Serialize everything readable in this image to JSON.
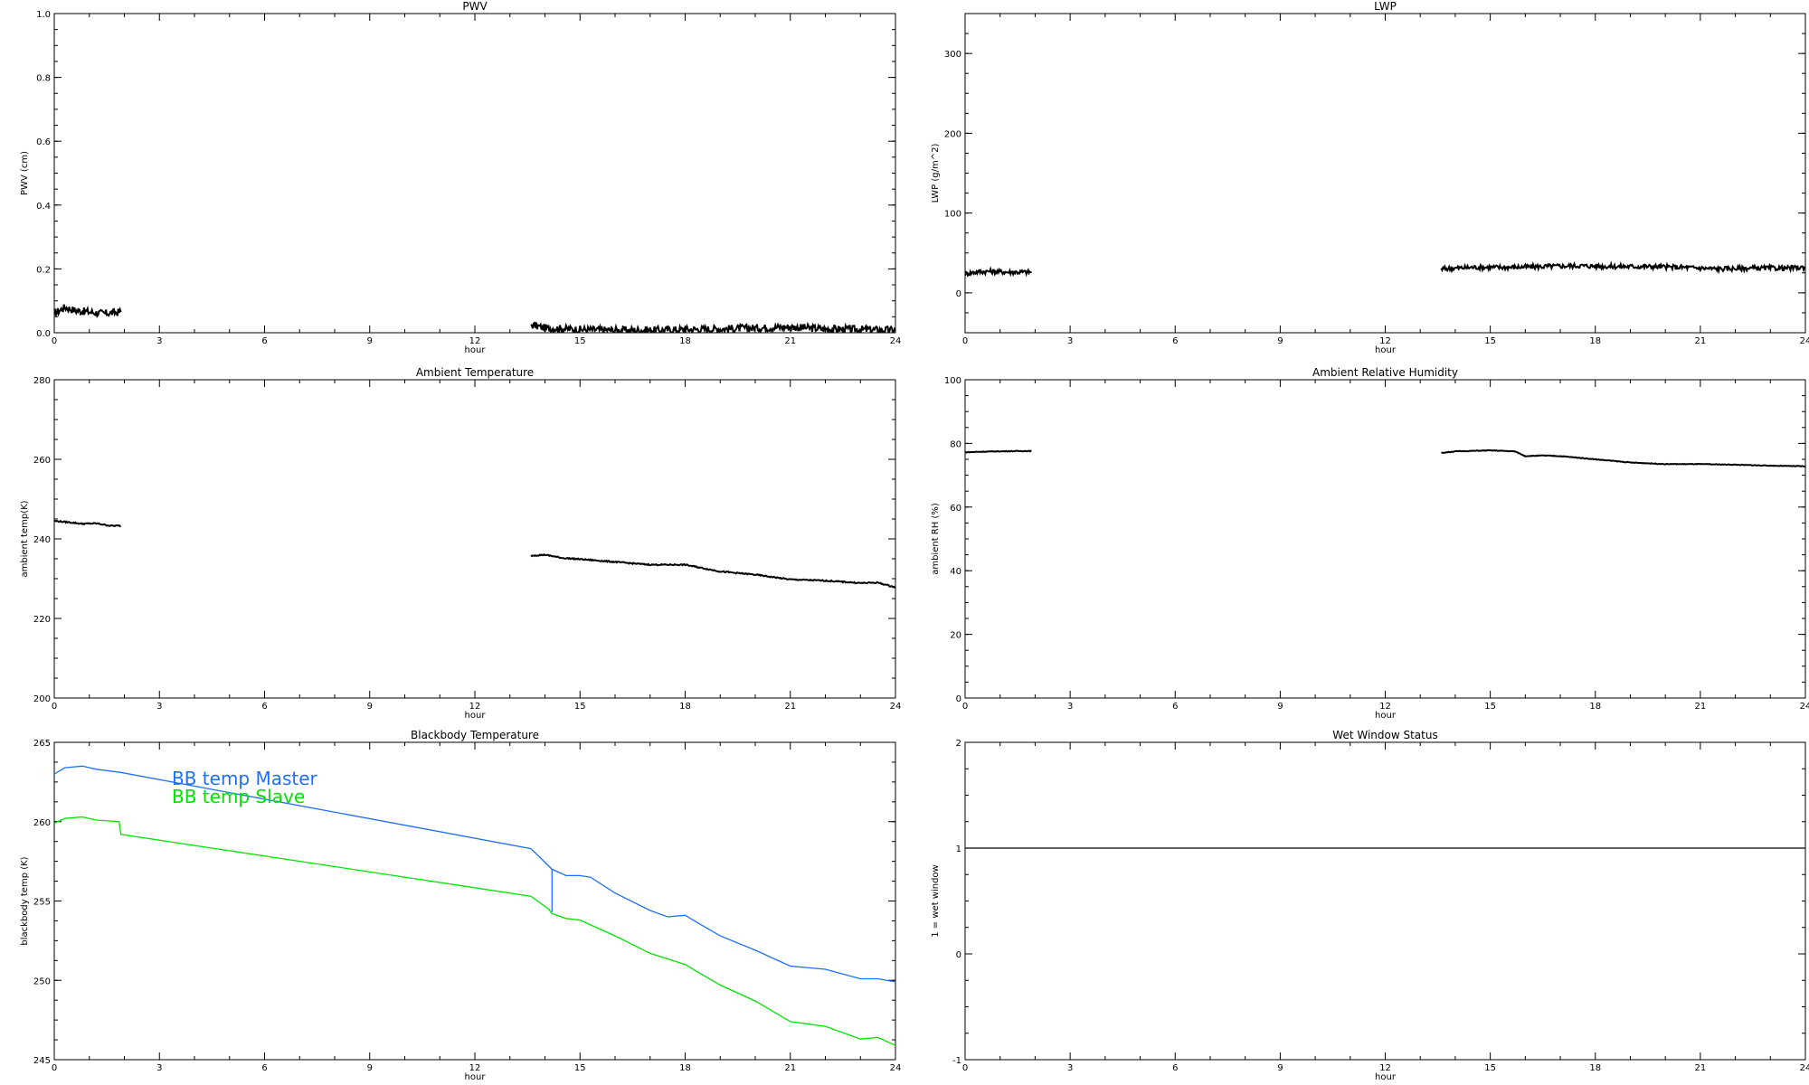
{
  "chart_data": [
    {
      "type": "line",
      "title": "PWV",
      "xlabel": "hour",
      "ylabel": "PWV (cm)",
      "xlim": [
        0,
        24
      ],
      "ylim": [
        0.0,
        1.0
      ],
      "xticks": [
        "0",
        "3",
        "6",
        "9",
        "12",
        "15",
        "18",
        "21",
        "24"
      ],
      "yticks": [
        "0.0",
        "0.2",
        "0.4",
        "0.6",
        "0.8",
        "1.0"
      ],
      "noise": 0.012,
      "series": [
        {
          "color": "#000000",
          "x": [
            0,
            0.3,
            0.6,
            1.0,
            1.4,
            1.9
          ],
          "y": [
            0.06,
            0.08,
            0.07,
            0.065,
            0.06,
            0.065
          ]
        },
        {
          "color": "#000000",
          "x": [
            13.6,
            14,
            15,
            16,
            17,
            18,
            19,
            20,
            21,
            22,
            23,
            24
          ],
          "y": [
            0.025,
            0.015,
            0.01,
            0.008,
            0.008,
            0.01,
            0.012,
            0.015,
            0.018,
            0.012,
            0.01,
            0.008
          ]
        }
      ]
    },
    {
      "type": "line",
      "title": "LWP",
      "xlabel": "hour",
      "ylabel": "LWP (g/m^2)",
      "xlim": [
        0,
        24
      ],
      "ylim": [
        -50,
        350
      ],
      "xticks": [
        "0",
        "3",
        "6",
        "9",
        "12",
        "15",
        "18",
        "21",
        "24"
      ],
      "yticks": [
        "0",
        "100",
        "200",
        "300"
      ],
      "noise": 3,
      "series": [
        {
          "color": "#000000",
          "x": [
            0,
            0.3,
            0.7,
            1.2,
            1.9
          ],
          "y": [
            24,
            26,
            27,
            26,
            26
          ]
        },
        {
          "color": "#000000",
          "x": [
            13.6,
            14.5,
            15.5,
            16.5,
            17.5,
            18.5,
            19.5,
            20.5,
            21.5,
            22.5,
            23.5,
            24
          ],
          "y": [
            30,
            32,
            32,
            33,
            34,
            33,
            33,
            32,
            30,
            31,
            31,
            32
          ]
        }
      ]
    },
    {
      "type": "line",
      "title": "Ambient Temperature",
      "xlabel": "hour",
      "ylabel": "ambient temp(K)",
      "xlim": [
        0,
        24
      ],
      "ylim": [
        200,
        280
      ],
      "xticks": [
        "0",
        "3",
        "6",
        "9",
        "12",
        "15",
        "18",
        "21",
        "24"
      ],
      "yticks": [
        "200",
        "220",
        "240",
        "260",
        "280"
      ],
      "noise": 0.15,
      "series": [
        {
          "color": "#000000",
          "x": [
            0,
            0.4,
            0.8,
            1.2,
            1.6,
            1.9
          ],
          "y": [
            244.5,
            244.2,
            243.8,
            243.9,
            243.3,
            243.3
          ]
        },
        {
          "color": "#000000",
          "x": [
            13.6,
            14,
            14.5,
            15,
            16,
            17,
            18,
            19,
            20,
            21,
            22,
            23,
            23.5,
            24
          ],
          "y": [
            235.8,
            236,
            235.2,
            234.9,
            234.2,
            233.5,
            233.5,
            231.8,
            231.0,
            229.8,
            229.5,
            228.9,
            229.0,
            227.8
          ]
        }
      ]
    },
    {
      "type": "line",
      "title": "Ambient Relative Humidity",
      "xlabel": "hour",
      "ylabel": "ambient RH (%)",
      "xlim": [
        0,
        24
      ],
      "ylim": [
        0,
        100
      ],
      "xticks": [
        "0",
        "3",
        "6",
        "9",
        "12",
        "15",
        "18",
        "21",
        "24"
      ],
      "yticks": [
        "0",
        "20",
        "40",
        "60",
        "80",
        "100"
      ],
      "noise": 0.1,
      "series": [
        {
          "color": "#000000",
          "x": [
            0,
            0.5,
            1.0,
            1.5,
            1.9
          ],
          "y": [
            77.2,
            77.4,
            77.5,
            77.6,
            77.6
          ]
        },
        {
          "color": "#000000",
          "x": [
            13.6,
            14,
            15,
            15.7,
            16,
            16.5,
            17,
            18,
            19,
            20,
            21,
            22,
            23,
            24
          ],
          "y": [
            77.0,
            77.5,
            77.8,
            77.5,
            76.0,
            76.2,
            76.0,
            75.0,
            74.0,
            73.5,
            73.5,
            73.3,
            73.0,
            72.8
          ]
        }
      ]
    },
    {
      "type": "line",
      "title": "Blackbody Temperature",
      "xlabel": "hour",
      "ylabel": "blackbody temp (K)",
      "xlim": [
        0,
        24
      ],
      "ylim": [
        245,
        265
      ],
      "xticks": [
        "0",
        "3",
        "6",
        "9",
        "12",
        "15",
        "18",
        "21",
        "24"
      ],
      "yticks": [
        "245",
        "250",
        "255",
        "260",
        "265"
      ],
      "noise": 0,
      "series": [
        {
          "name": "BB temp Master",
          "color": "#1f6fff",
          "x": [
            0,
            0.3,
            0.8,
            1.2,
            1.9,
            13.6,
            14.2,
            14.6,
            15.0,
            15.3,
            16.0,
            17.0,
            17.5,
            18.0,
            18.3,
            19.0,
            20.0,
            21.0,
            22.0,
            23.0,
            23.5,
            24.0
          ],
          "y": [
            263.0,
            263.4,
            263.5,
            263.3,
            263.1,
            258.3,
            257.0,
            256.6,
            256.6,
            256.5,
            255.5,
            254.4,
            254.0,
            254.1,
            253.7,
            252.8,
            251.9,
            250.9,
            250.7,
            250.1,
            250.1,
            249.9
          ]
        },
        {
          "name": "BB temp Slave",
          "color": "#00e400",
          "x": [
            0,
            0.3,
            0.8,
            1.2,
            1.85,
            1.9,
            13.6,
            14.1,
            14.2,
            14.6,
            15.0,
            16.0,
            17.0,
            18.0,
            18.3,
            19.0,
            20.0,
            21.0,
            22.0,
            23.0,
            23.5,
            24.0
          ],
          "y": [
            259.9,
            260.2,
            260.3,
            260.1,
            260.0,
            259.2,
            255.3,
            254.5,
            254.2,
            253.9,
            253.8,
            252.8,
            251.7,
            251.0,
            250.6,
            249.7,
            248.7,
            247.4,
            247.1,
            246.3,
            246.4,
            245.9
          ]
        },
        {
          "name": "",
          "color": "#1f6fff",
          "x": [
            14.2,
            14.2
          ],
          "y": [
            257.0,
            254.3
          ]
        }
      ],
      "legend": {
        "entries": [
          "BB temp Master",
          "BB temp Slave"
        ],
        "placement": "top-left"
      }
    },
    {
      "type": "line",
      "title": "Wet Window Status",
      "xlabel": "hour",
      "ylabel": "1 = wet window",
      "xlim": [
        0,
        24
      ],
      "ylim": [
        -1,
        2
      ],
      "xticks": [
        "0",
        "3",
        "6",
        "9",
        "12",
        "15",
        "18",
        "21",
        "24"
      ],
      "yticks": [
        "-1",
        "0",
        "1",
        "2"
      ],
      "noise": 0,
      "series": [
        {
          "color": "#000000",
          "x": [
            0,
            24
          ],
          "y": [
            1,
            1
          ]
        }
      ]
    }
  ]
}
